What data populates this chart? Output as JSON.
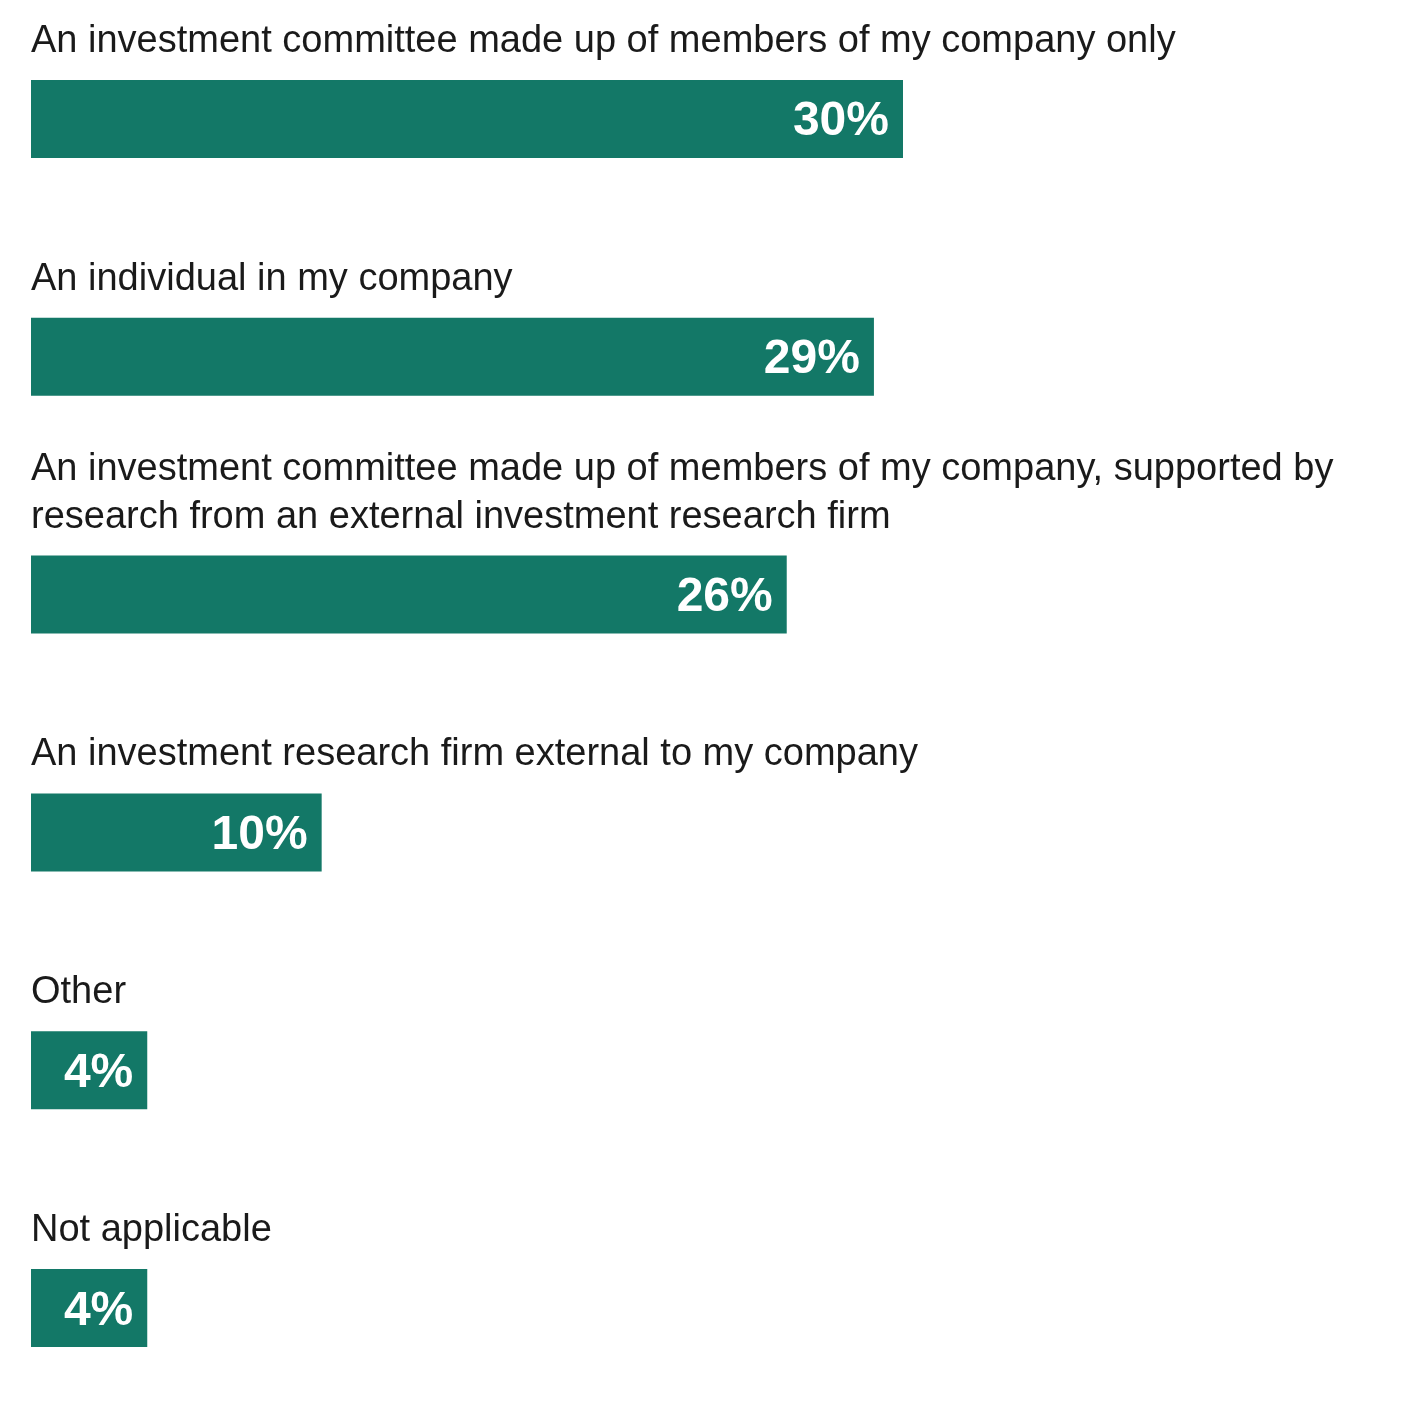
{
  "chart_data": {
    "type": "bar",
    "orientation": "horizontal",
    "categories": [
      "An investment committee made up of members of my company only",
      "An individual in my company",
      "An investment committee made up of members of my company, supported by research from an external investment research firm",
      "An investment research firm external to my company",
      "Other",
      "Not applicable"
    ],
    "values": [
      30,
      29,
      26,
      10,
      4,
      4
    ],
    "value_labels": [
      "30%",
      "29%",
      "26%",
      "10%",
      "4%",
      "4%"
    ],
    "color": "#137867",
    "tick_labels": "y"
  }
}
